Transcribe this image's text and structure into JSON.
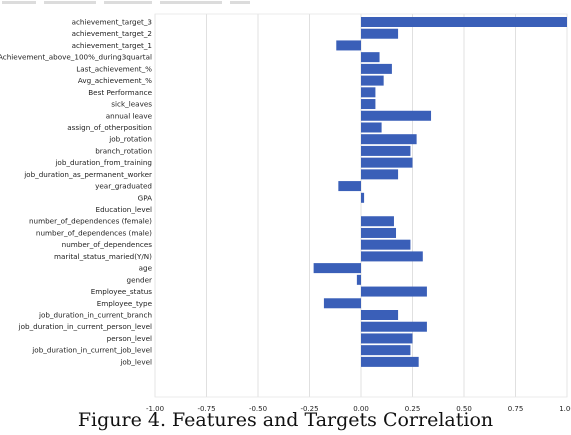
{
  "caption": "Figure 4. Features and Targets Correlation",
  "chart_data": {
    "type": "bar",
    "orientation": "horizontal",
    "title": "",
    "xlabel": "",
    "ylabel": "",
    "xlim": [
      -1.0,
      1.0
    ],
    "xticks": [
      "-1.00",
      "-0.75",
      "-0.50",
      "-0.25",
      "0.00",
      "0.25",
      "0.50",
      "0.75",
      "1.00"
    ],
    "grid": "vertical",
    "bar_color": "#3a5fb8",
    "categories": [
      "achievement_target_3",
      "achievement_target_2",
      "achievement_target_1",
      "Achievement_above_100%_during3quartal",
      "Last_achievement_%",
      "Avg_achievement_%",
      "Best Performance",
      "sick_leaves",
      "annual leave",
      "assign_of_otherposition",
      "job_rotation",
      "branch_rotation",
      "job_duration_from_training",
      "job_duration_as_permanent_worker",
      "year_graduated",
      "GPA",
      "Education_level",
      "number_of_dependences (female)",
      "number_of_dependences (male)",
      "number_of_dependences",
      "marital_status_maried(Y/N)",
      "age",
      "gender",
      "Employee_status",
      "Employee_type",
      "job_duration_in_current_branch",
      "job_duration_in_current_person_level",
      "person_level",
      "job_duration_in_current_job_level",
      "job_level"
    ],
    "values": [
      1.0,
      0.18,
      -0.12,
      0.09,
      0.15,
      0.11,
      0.07,
      0.07,
      0.34,
      0.1,
      0.27,
      0.24,
      0.25,
      0.18,
      -0.11,
      0.015,
      0.0,
      0.16,
      0.17,
      0.24,
      0.3,
      -0.23,
      -0.02,
      0.32,
      -0.18,
      0.18,
      0.32,
      0.25,
      0.24,
      0.28
    ]
  }
}
